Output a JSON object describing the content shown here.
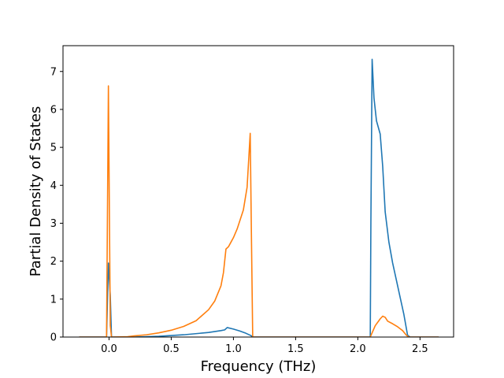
{
  "chart_data": {
    "type": "line",
    "title": "",
    "xlabel": "Frequency (THz)",
    "ylabel": "Partial Density of States",
    "xlim": [
      -0.37,
      2.77
    ],
    "ylim": [
      0,
      7.68
    ],
    "xticks": [
      0.0,
      0.5,
      1.0,
      1.5,
      2.0,
      2.5
    ],
    "xtick_labels": [
      "0.0",
      "0.5",
      "1.0",
      "1.5",
      "2.0",
      "2.5"
    ],
    "yticks": [
      0,
      1,
      2,
      3,
      4,
      5,
      6,
      7
    ],
    "ytick_labels": [
      "0",
      "1",
      "2",
      "3",
      "4",
      "5",
      "6",
      "7"
    ],
    "grid": false,
    "legend": "none",
    "series": [
      {
        "color": "#1f77b4",
        "points": [
          [
            -0.24,
            0
          ],
          [
            -0.02,
            0
          ],
          [
            -0.005,
            1.95
          ],
          [
            0.01,
            1.1
          ],
          [
            0.02,
            0
          ],
          [
            0.2,
            0.0
          ],
          [
            0.4,
            0.02
          ],
          [
            0.6,
            0.06
          ],
          [
            0.8,
            0.12
          ],
          [
            0.9,
            0.17
          ],
          [
            0.93,
            0.19
          ],
          [
            0.95,
            0.25
          ],
          [
            1.0,
            0.21
          ],
          [
            1.05,
            0.16
          ],
          [
            1.1,
            0.1
          ],
          [
            1.14,
            0.04
          ],
          [
            1.16,
            0
          ],
          [
            1.5,
            0
          ],
          [
            2.1,
            0
          ],
          [
            2.105,
            3.0
          ],
          [
            2.115,
            7.32
          ],
          [
            2.13,
            6.3
          ],
          [
            2.15,
            5.7
          ],
          [
            2.18,
            5.35
          ],
          [
            2.2,
            4.5
          ],
          [
            2.22,
            3.3
          ],
          [
            2.25,
            2.5
          ],
          [
            2.28,
            1.95
          ],
          [
            2.31,
            1.5
          ],
          [
            2.34,
            1.05
          ],
          [
            2.37,
            0.6
          ],
          [
            2.4,
            0.05
          ],
          [
            2.42,
            0
          ],
          [
            2.65,
            0
          ]
        ]
      },
      {
        "color": "#ff7f0e",
        "points": [
          [
            -0.24,
            0
          ],
          [
            -0.02,
            0
          ],
          [
            -0.005,
            6.62
          ],
          [
            0.01,
            0.3
          ],
          [
            0.02,
            0
          ],
          [
            0.15,
            0.01
          ],
          [
            0.2,
            0.03
          ],
          [
            0.3,
            0.06
          ],
          [
            0.4,
            0.11
          ],
          [
            0.5,
            0.18
          ],
          [
            0.6,
            0.28
          ],
          [
            0.7,
            0.43
          ],
          [
            0.8,
            0.72
          ],
          [
            0.85,
            0.95
          ],
          [
            0.9,
            1.35
          ],
          [
            0.92,
            1.7
          ],
          [
            0.94,
            2.32
          ],
          [
            0.96,
            2.38
          ],
          [
            0.98,
            2.5
          ],
          [
            1.0,
            2.62
          ],
          [
            1.03,
            2.85
          ],
          [
            1.06,
            3.15
          ],
          [
            1.08,
            3.35
          ],
          [
            1.11,
            3.95
          ],
          [
            1.125,
            4.8
          ],
          [
            1.135,
            5.37
          ],
          [
            1.145,
            2.6
          ],
          [
            1.155,
            0
          ],
          [
            1.5,
            0
          ],
          [
            2.1,
            0
          ],
          [
            2.14,
            0.3
          ],
          [
            2.18,
            0.48
          ],
          [
            2.2,
            0.55
          ],
          [
            2.22,
            0.52
          ],
          [
            2.24,
            0.42
          ],
          [
            2.28,
            0.35
          ],
          [
            2.32,
            0.27
          ],
          [
            2.36,
            0.17
          ],
          [
            2.39,
            0.05
          ],
          [
            2.41,
            0
          ],
          [
            2.65,
            0
          ]
        ]
      }
    ]
  }
}
